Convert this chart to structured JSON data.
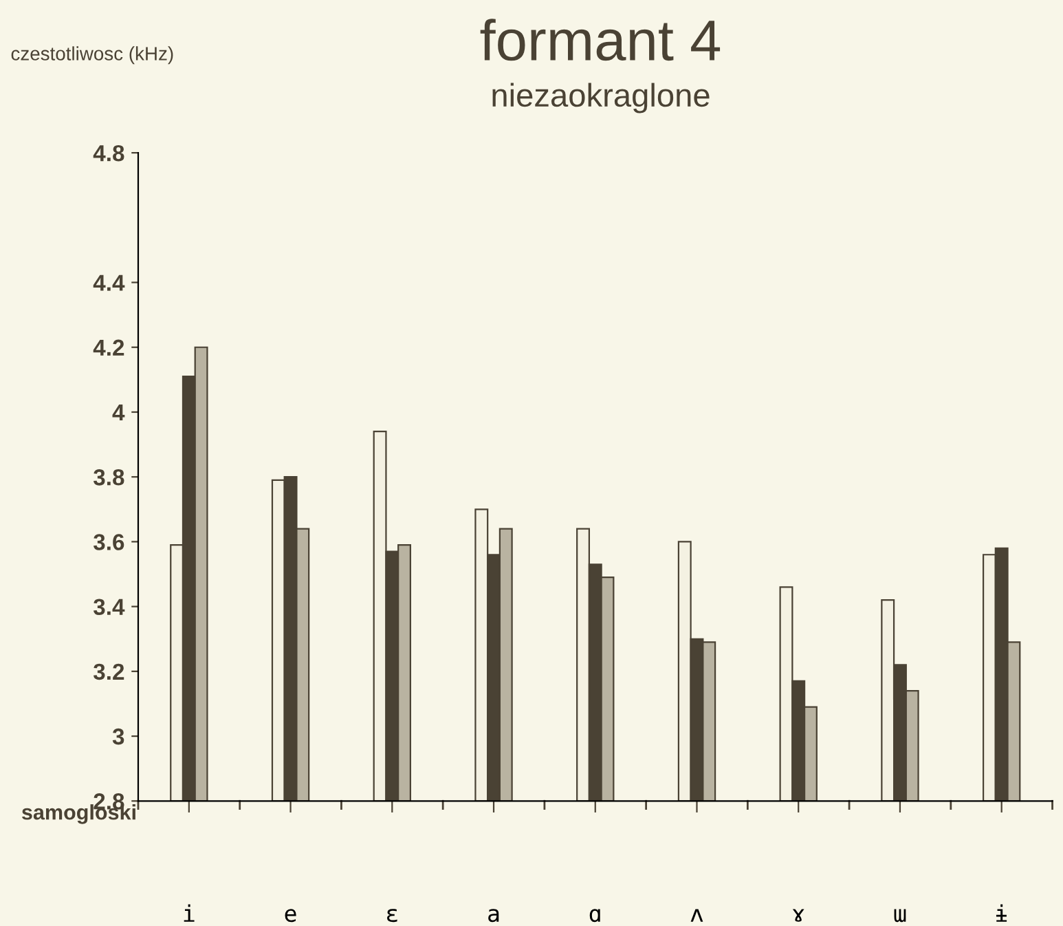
{
  "chart_data": {
    "type": "bar",
    "title": "formant 4",
    "subtitle": "niezaokraglone",
    "ylabel": "czestotliwosc (kHz)",
    "xlabel": "samogloski",
    "categories": [
      "i",
      "e",
      "ɛ",
      "a",
      "ɑ",
      "ʌ",
      "ɤ",
      "ɯ",
      "ɨ"
    ],
    "series": [
      {
        "color": "#f4f1e2",
        "values": [
          3.59,
          3.79,
          3.94,
          3.7,
          3.64,
          3.6,
          3.46,
          3.42,
          3.56
        ]
      },
      {
        "color": "#4a4234",
        "values": [
          4.11,
          3.8,
          3.57,
          3.56,
          3.53,
          3.3,
          3.17,
          3.22,
          3.58
        ]
      },
      {
        "color": "#b9b3a1",
        "values": [
          4.2,
          3.64,
          3.59,
          3.64,
          3.49,
          3.29,
          3.09,
          3.14,
          3.29
        ]
      }
    ],
    "ylim": [
      2.8,
      4.8
    ],
    "yticks": [
      2.8,
      3,
      3.2,
      3.4,
      3.6,
      3.8,
      4,
      4.2,
      4.4,
      4.8
    ],
    "grid": false,
    "legend": false
  }
}
